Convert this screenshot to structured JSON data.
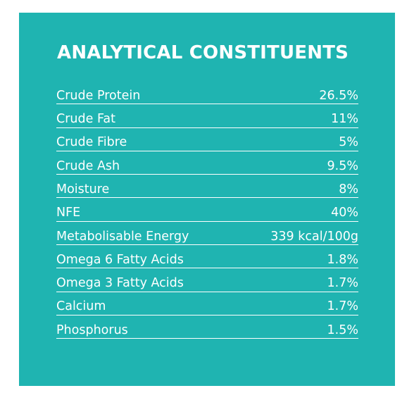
{
  "heading": "ANALYTICAL CONSTITUENTS",
  "colors": {
    "panel_background": "#1fb4b1",
    "text": "#ffffff"
  },
  "rows": [
    {
      "label": "Crude Protein",
      "value": "26.5%"
    },
    {
      "label": "Crude Fat",
      "value": "11%"
    },
    {
      "label": "Crude Fibre",
      "value": "5%"
    },
    {
      "label": "Crude Ash",
      "value": "9.5%"
    },
    {
      "label": "Moisture",
      "value": "8%"
    },
    {
      "label": "NFE",
      "value": "40%"
    },
    {
      "label": "Metabolisable Energy",
      "value": "339 kcal/100g"
    },
    {
      "label": "Omega 6 Fatty Acids",
      "value": "1.8%"
    },
    {
      "label": "Omega 3 Fatty Acids",
      "value": "1.7%"
    },
    {
      "label": "Calcium",
      "value": "1.7%"
    },
    {
      "label": "Phosphorus",
      "value": "1.5%"
    }
  ]
}
